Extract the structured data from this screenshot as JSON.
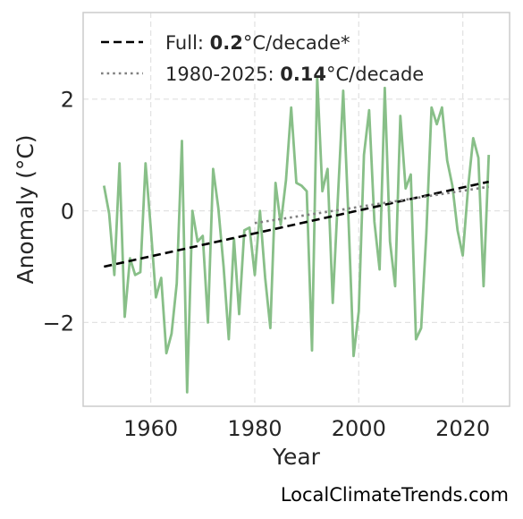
{
  "chart_data": {
    "type": "line",
    "xlabel": "Year",
    "ylabel": "Anomaly (°C)",
    "xlim": [
      1947,
      2029
    ],
    "ylim": [
      -3.5,
      3.55
    ],
    "xticks": [
      1960,
      1980,
      2000,
      2020
    ],
    "xtick_labels": [
      "1960",
      "1980",
      "2000",
      "2020"
    ],
    "yticks": [
      -2,
      0,
      2
    ],
    "ytick_labels": [
      "−2",
      "0",
      "2"
    ],
    "grid": true,
    "legend_position": "top-left",
    "series": [
      {
        "style": "solid",
        "color": "#88bf88",
        "x": [
          1951,
          1952,
          1953,
          1954,
          1955,
          1956,
          1957,
          1958,
          1959,
          1960,
          1961,
          1962,
          1963,
          1964,
          1965,
          1966,
          1967,
          1968,
          1969,
          1970,
          1971,
          1972,
          1973,
          1974,
          1975,
          1976,
          1977,
          1978,
          1979,
          1980,
          1981,
          1982,
          1983,
          1984,
          1985,
          1986,
          1987,
          1988,
          1989,
          1990,
          1991,
          1992,
          1993,
          1994,
          1995,
          1996,
          1997,
          1998,
          1999,
          2000,
          2001,
          2002,
          2003,
          2004,
          2005,
          2006,
          2007,
          2008,
          2009,
          2010,
          2011,
          2012,
          2013,
          2014,
          2015,
          2016,
          2017,
          2018,
          2019,
          2020,
          2021,
          2022,
          2023,
          2024,
          2025
        ],
        "y": [
          0.45,
          -0.05,
          -1.15,
          0.85,
          -1.9,
          -0.85,
          -1.15,
          -1.1,
          0.85,
          -0.3,
          -1.55,
          -1.2,
          -2.55,
          -2.2,
          -1.3,
          1.25,
          -3.25,
          0.0,
          -0.55,
          -0.45,
          -2.0,
          0.75,
          0.05,
          -1.0,
          -2.3,
          -0.5,
          -1.85,
          -0.35,
          -0.3,
          -1.15,
          0.0,
          -1.2,
          -2.1,
          0.5,
          -0.25,
          0.55,
          1.85,
          0.5,
          0.45,
          0.35,
          -2.5,
          2.4,
          0.35,
          0.75,
          -1.65,
          0.25,
          2.15,
          -0.1,
          -2.6,
          -1.8,
          1.0,
          1.8,
          -0.2,
          -1.05,
          2.2,
          -0.55,
          -1.35,
          1.7,
          0.4,
          0.65,
          -2.3,
          -2.1,
          -0.4,
          1.85,
          1.55,
          1.85,
          0.9,
          0.45,
          -0.35,
          -0.8,
          0.4,
          1.3,
          0.95,
          -1.35,
          1.0
        ]
      },
      {
        "name": "Full: 0.2°C/decade*",
        "style": "dashed",
        "color": "#000000",
        "x": [
          1951,
          2025
        ],
        "y": [
          -1.0,
          0.52
        ]
      },
      {
        "name": "1980-2025: 0.14°C/decade",
        "style": "dotted",
        "color": "#808080",
        "x": [
          1980,
          2025
        ],
        "y": [
          -0.22,
          0.43
        ]
      }
    ]
  },
  "legend": {
    "full_prefix": "Full: ",
    "full_value": "0.2",
    "full_suffix": "°C/decade*",
    "recent_prefix": "1980-2025: ",
    "recent_value": "0.14",
    "recent_suffix": "°C/decade"
  },
  "watermark": "LocalClimateTrends.com"
}
